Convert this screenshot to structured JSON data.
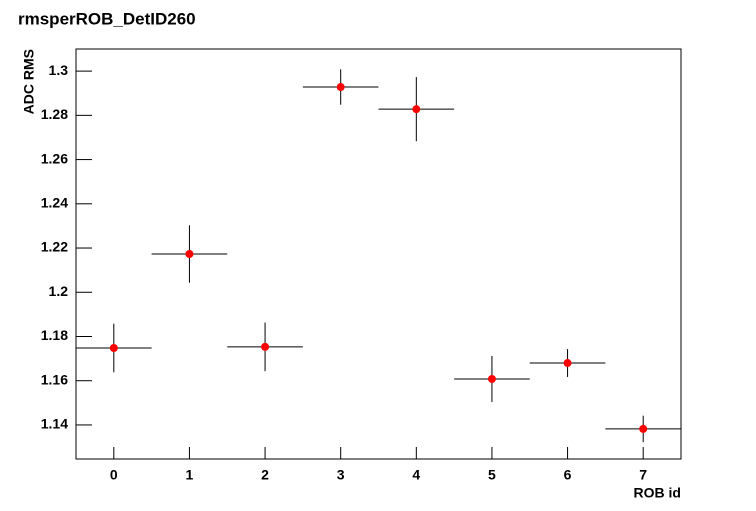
{
  "chart_data": {
    "type": "scatter",
    "title": "rmsperROB_DetID260",
    "xlabel": "ROB id",
    "ylabel": "ADC RMS",
    "x": [
      0,
      1,
      2,
      3,
      4,
      5,
      6,
      7
    ],
    "xerr": [
      0.5,
      0.5,
      0.5,
      0.5,
      0.5,
      0.5,
      0.5,
      0.5
    ],
    "series": [
      {
        "color": "#ff0000",
        "values": [
          1.1748,
          1.2173,
          1.1753,
          1.2928,
          1.2828,
          1.1608,
          1.168,
          1.1382
        ],
        "errors": [
          0.011,
          0.013,
          0.011,
          0.008,
          0.0145,
          0.0104,
          0.0063,
          0.006
        ]
      }
    ],
    "xlim": [
      -0.5,
      7.5
    ],
    "ylim": [
      1.1246,
      1.31
    ],
    "xticks": [
      0,
      1,
      2,
      3,
      4,
      5,
      6,
      7
    ],
    "yticks": [
      1.14,
      1.16,
      1.18,
      1.2,
      1.22,
      1.24,
      1.26,
      1.28,
      1.3
    ],
    "grid": false
  }
}
